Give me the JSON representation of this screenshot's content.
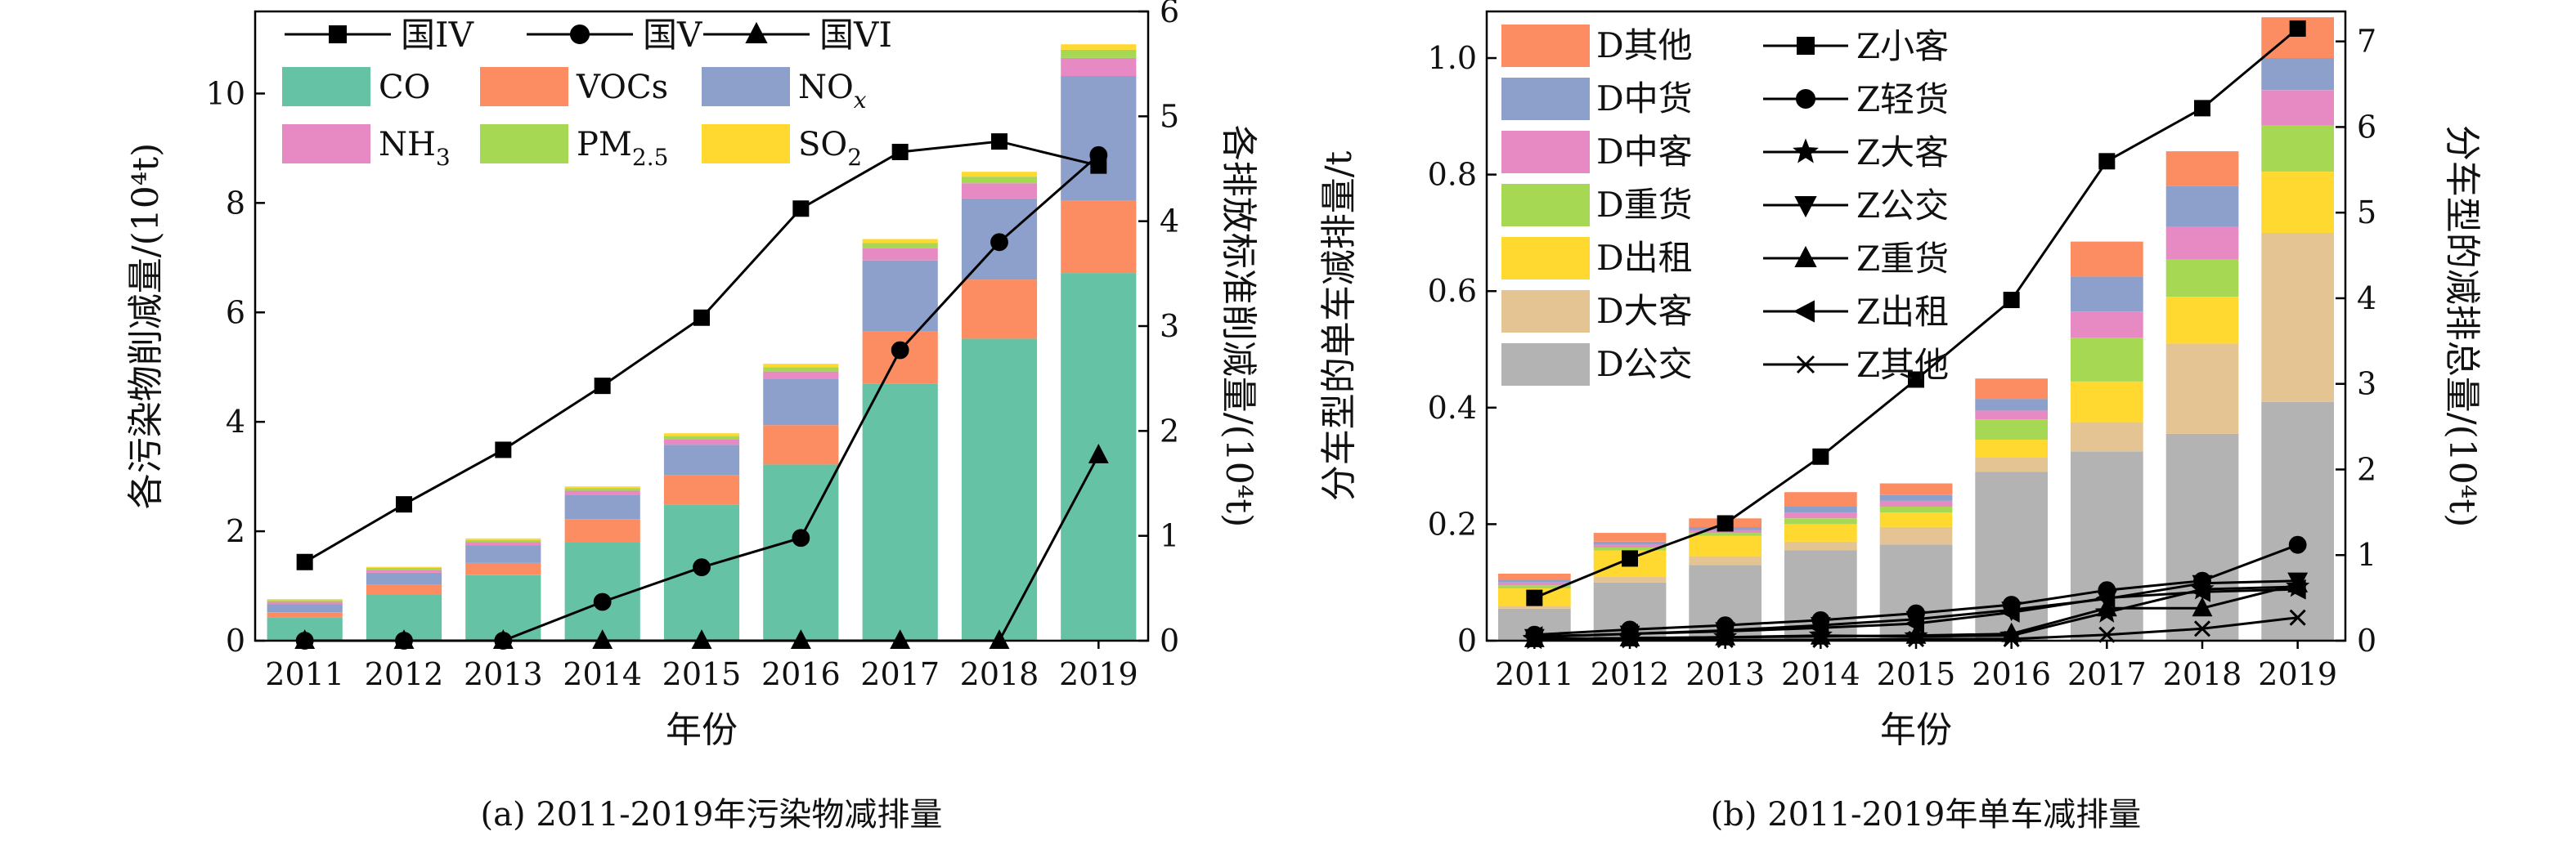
{
  "chart_data": [
    {
      "type": "bar",
      "subtype": "stacked-bar-with-lines",
      "caption": "(a) 2011-2019年污染物减排量",
      "xlabel": "年份",
      "ylabel": "各污染物削减量/(10⁴t)",
      "y2label": "各排放标准削减量/(10⁴t)",
      "categories": [
        "2011",
        "2012",
        "2013",
        "2014",
        "2015",
        "2016",
        "2017",
        "2018",
        "2019"
      ],
      "ylim": [
        0,
        11.5
      ],
      "yticks": [
        0,
        2,
        4,
        6,
        8,
        10
      ],
      "y2lim": [
        0,
        6
      ],
      "y2ticks": [
        0,
        1,
        2,
        3,
        4,
        5,
        6
      ],
      "grid": false,
      "legend_position": "top",
      "bar_series": [
        {
          "name": "CO",
          "color": "#66c2a5",
          "values": [
            0.42,
            0.85,
            1.2,
            1.8,
            2.48,
            3.22,
            4.7,
            5.52,
            6.72
          ]
        },
        {
          "name": "VOCs",
          "color": "#fc8d62",
          "values": [
            0.1,
            0.17,
            0.22,
            0.42,
            0.55,
            0.72,
            0.95,
            1.08,
            1.32
          ]
        },
        {
          "name": "NOx",
          "color": "#8da0cb",
          "values": [
            0.15,
            0.22,
            0.32,
            0.45,
            0.55,
            0.85,
            1.3,
            1.48,
            2.28
          ]
        },
        {
          "name": "NH3",
          "color": "#e78ac3",
          "values": [
            0.04,
            0.05,
            0.06,
            0.07,
            0.1,
            0.13,
            0.22,
            0.28,
            0.33
          ]
        },
        {
          "name": "PM2.5",
          "color": "#a6d854",
          "values": [
            0.03,
            0.04,
            0.04,
            0.05,
            0.06,
            0.08,
            0.1,
            0.12,
            0.15
          ]
        },
        {
          "name": "SO2",
          "color": "#ffd92f",
          "values": [
            0.02,
            0.02,
            0.03,
            0.03,
            0.05,
            0.06,
            0.07,
            0.09,
            0.1
          ]
        }
      ],
      "line_series": [
        {
          "name": "国IV",
          "marker": "square",
          "values": [
            0.75,
            1.3,
            1.82,
            2.43,
            3.08,
            4.12,
            4.66,
            4.76,
            4.53
          ]
        },
        {
          "name": "国V",
          "marker": "circle",
          "values": [
            0,
            0,
            0,
            0.37,
            0.7,
            0.98,
            2.77,
            3.8,
            4.63
          ]
        },
        {
          "name": "国VI",
          "marker": "triangle",
          "values": [
            0,
            0,
            0,
            0,
            0,
            0,
            0,
            0,
            1.77
          ]
        }
      ],
      "legend": {
        "lines": [
          "国IV",
          "国V",
          "国VI"
        ],
        "bars": [
          {
            "base": "CO",
            "sub": ""
          },
          {
            "base": "VOCs",
            "sub": ""
          },
          {
            "base": "NO",
            "sub": "x"
          },
          {
            "base": "NH",
            "sub": "3"
          },
          {
            "base": "PM",
            "sub": "2.5"
          },
          {
            "base": "SO",
            "sub": "2"
          }
        ]
      }
    },
    {
      "type": "bar",
      "subtype": "stacked-bar-with-lines",
      "caption": "(b) 2011-2019年单车减排量",
      "xlabel": "年份",
      "ylabel": "分车型的单车减排量/t",
      "y2label": "分车型的减排总量/(10⁴t)",
      "categories": [
        "2011",
        "2012",
        "2013",
        "2014",
        "2015",
        "2016",
        "2017",
        "2018",
        "2019"
      ],
      "ylim": [
        0,
        1.08
      ],
      "yticks": [
        "0",
        "0.2",
        "0.4",
        "0.6",
        "0.8",
        "1.0"
      ],
      "y2lim": [
        0,
        7.35
      ],
      "y2ticks": [
        0,
        1,
        2,
        3,
        4,
        5,
        6,
        7
      ],
      "grid": false,
      "legend_position": "top-left",
      "bar_series": [
        {
          "name": "D公交",
          "color": "#b3b3b3",
          "values": [
            0.055,
            0.1,
            0.13,
            0.155,
            0.165,
            0.29,
            0.325,
            0.355,
            0.41
          ]
        },
        {
          "name": "D大客",
          "color": "#e5c494",
          "values": [
            0.005,
            0.01,
            0.015,
            0.015,
            0.03,
            0.025,
            0.05,
            0.155,
            0.29
          ]
        },
        {
          "name": "D出租",
          "color": "#ffd92f",
          "values": [
            0.03,
            0.045,
            0.035,
            0.03,
            0.025,
            0.03,
            0.07,
            0.08,
            0.105
          ]
        },
        {
          "name": "D重货",
          "color": "#a6d854",
          "values": [
            0.005,
            0.005,
            0.005,
            0.01,
            0.01,
            0.035,
            0.075,
            0.065,
            0.08
          ]
        },
        {
          "name": "D中客",
          "color": "#e78ac3",
          "values": [
            0.005,
            0.005,
            0.005,
            0.01,
            0.01,
            0.015,
            0.045,
            0.055,
            0.06
          ]
        },
        {
          "name": "D中货",
          "color": "#8da0cb",
          "values": [
            0.005,
            0.005,
            0.005,
            0.01,
            0.01,
            0.02,
            0.06,
            0.07,
            0.055
          ]
        },
        {
          "name": "D其他",
          "color": "#fc8d62",
          "values": [
            0.01,
            0.015,
            0.015,
            0.025,
            0.02,
            0.035,
            0.06,
            0.06,
            0.07
          ]
        }
      ],
      "line_series": [
        {
          "name": "Z小客",
          "marker": "square",
          "values": [
            0.5,
            0.96,
            1.37,
            2.15,
            3.05,
            3.98,
            5.6,
            6.22,
            7.15
          ]
        },
        {
          "name": "Z轻货",
          "marker": "circle",
          "values": [
            0.07,
            0.13,
            0.18,
            0.24,
            0.32,
            0.42,
            0.59,
            0.7,
            1.12
          ]
        },
        {
          "name": "Z大客",
          "marker": "star",
          "values": [
            0.02,
            0.03,
            0.04,
            0.06,
            0.05,
            0.06,
            0.33,
            0.6,
            0.63
          ]
        },
        {
          "name": "Z公交",
          "marker": "triangle-down",
          "values": [
            0.04,
            0.08,
            0.12,
            0.18,
            0.25,
            0.36,
            0.49,
            0.67,
            0.7
          ]
        },
        {
          "name": "Z重货",
          "marker": "triangle",
          "values": [
            0.02,
            0.03,
            0.04,
            0.05,
            0.06,
            0.08,
            0.38,
            0.38,
            0.66
          ]
        },
        {
          "name": "Z出租",
          "marker": "triangle-left",
          "values": [
            0.05,
            0.08,
            0.11,
            0.15,
            0.2,
            0.33,
            0.5,
            0.57,
            0.6
          ]
        },
        {
          "name": "Z其他",
          "marker": "x",
          "values": [
            0.01,
            0.01,
            0.01,
            0.01,
            0.02,
            0.02,
            0.07,
            0.14,
            0.27
          ]
        }
      ],
      "legend": {
        "bars": [
          "D其他",
          "D中货",
          "D中客",
          "D重货",
          "D出租",
          "D大客",
          "D公交"
        ],
        "lines": [
          "Z小客",
          "Z轻货",
          "Z大客",
          "Z公交",
          "Z重货",
          "Z出租",
          "Z其他"
        ]
      }
    }
  ]
}
